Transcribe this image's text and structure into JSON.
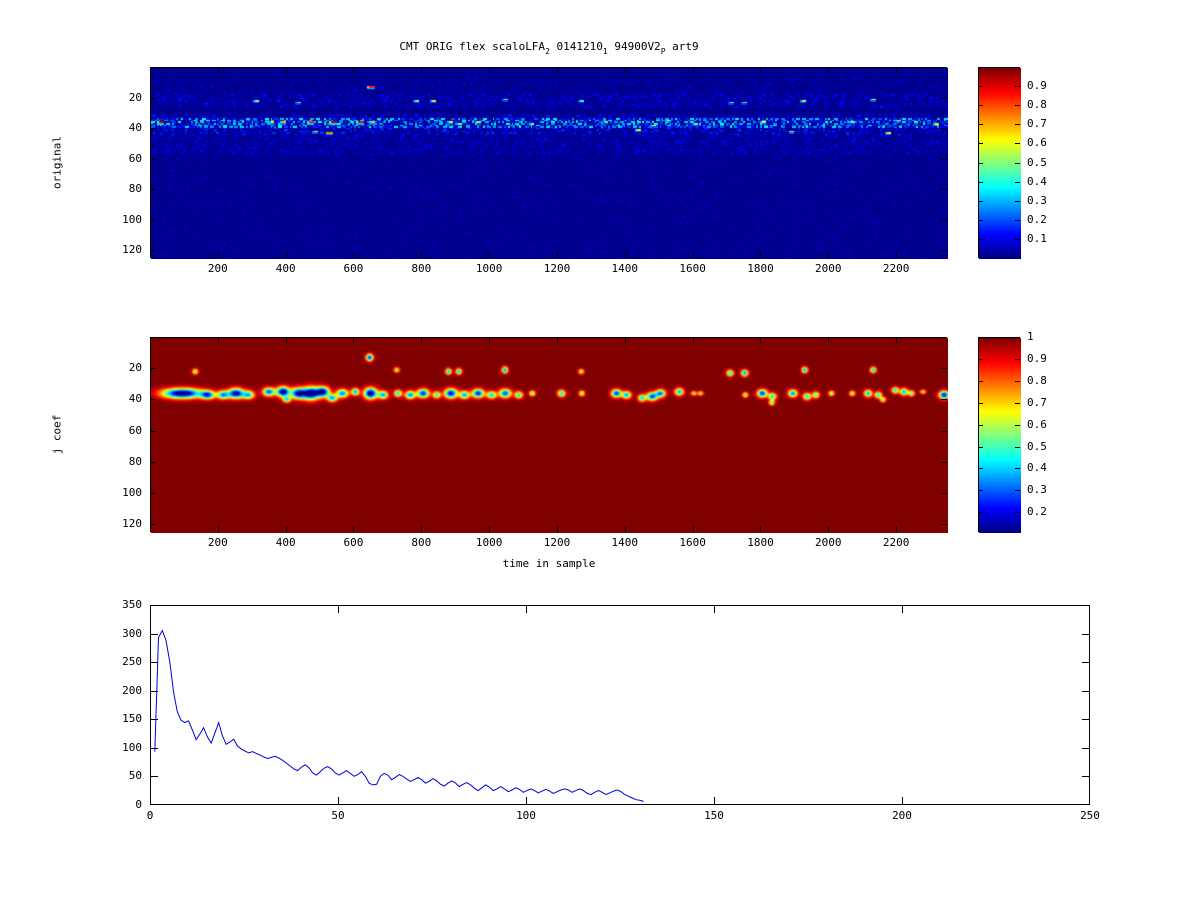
{
  "figure": {
    "background": "#ffffff",
    "axis_color": "#000000",
    "line_color": "#0000dd",
    "jet_low": "#00008f",
    "jet_high": "#7f0000"
  },
  "title": {
    "segments": [
      {
        "text": "CMT ORIG flex scaloLFA",
        "sub": false
      },
      {
        "text": "2",
        "sub": true
      },
      {
        "text": " 0141210",
        "sub": false
      },
      {
        "text": "1",
        "sub": true
      },
      {
        "text": " 94900V2",
        "sub": false
      },
      {
        "text": "P",
        "sub": true
      },
      {
        "text": " art9",
        "sub": false
      }
    ]
  },
  "chart_data": [
    {
      "type": "heatmap",
      "name": "original-scalogram",
      "ylabel": "original",
      "xlabel": "",
      "x_ticks": [
        200,
        400,
        600,
        800,
        1000,
        1200,
        1400,
        1600,
        1800,
        2000,
        2200
      ],
      "y_ticks": [
        20,
        40,
        60,
        80,
        100,
        120
      ],
      "x_range": [
        0,
        2350
      ],
      "y_range": [
        0,
        125
      ],
      "grid": false,
      "colormap": "jet",
      "background_value": 0.016,
      "colorbar": {
        "ticks": [
          0.1,
          0.2,
          0.3,
          0.4,
          0.5,
          0.6,
          0.7,
          0.8,
          0.9
        ],
        "vmin": 0,
        "vmax": 1
      },
      "noise": {
        "seed": 7,
        "bands": [
          {
            "row_min": 33,
            "row_max": 38,
            "density": 0.75,
            "vmin": 0.08,
            "vmax": 0.4
          },
          {
            "row_min": 30,
            "row_max": 33,
            "density": 0.25,
            "vmin": 0.05,
            "vmax": 0.15
          },
          {
            "row_min": 38,
            "row_max": 43,
            "density": 0.3,
            "vmin": 0.05,
            "vmax": 0.18
          },
          {
            "row_min": 17,
            "row_max": 25,
            "density": 0.28,
            "vmin": 0.04,
            "vmax": 0.14
          },
          {
            "row_min": 44,
            "row_max": 56,
            "density": 0.22,
            "vmin": 0.04,
            "vmax": 0.12
          },
          {
            "row_min": 6,
            "row_max": 16,
            "density": 0.1,
            "vmin": 0.03,
            "vmax": 0.09
          },
          {
            "row_min": 57,
            "row_max": 124,
            "density": 0.04,
            "vmin": 0.03,
            "vmax": 0.07
          }
        ]
      },
      "hotspots": [
        [
          25,
          35,
          0.95
        ],
        [
          305,
          21,
          0.55
        ],
        [
          350,
          35,
          0.65
        ],
        [
          387,
          35,
          0.7
        ],
        [
          430,
          22,
          0.5
        ],
        [
          467,
          35,
          0.85
        ],
        [
          480,
          41,
          0.6
        ],
        [
          520,
          42,
          0.75
        ],
        [
          530,
          35,
          0.95
        ],
        [
          612,
          35,
          0.9
        ],
        [
          642,
          12,
          0.85
        ],
        [
          650,
          35,
          0.7
        ],
        [
          776,
          21,
          0.5
        ],
        [
          826,
          21,
          0.55
        ],
        [
          880,
          35,
          0.6
        ],
        [
          905,
          36,
          0.5
        ],
        [
          960,
          35,
          0.55
        ],
        [
          1041,
          20,
          0.5
        ],
        [
          1120,
          36,
          0.55
        ],
        [
          1266,
          21,
          0.45
        ],
        [
          1340,
          35,
          0.5
        ],
        [
          1430,
          40,
          0.65
        ],
        [
          1475,
          37,
          0.6
        ],
        [
          1520,
          34,
          0.55
        ],
        [
          1600,
          36,
          0.5
        ],
        [
          1705,
          22,
          0.5
        ],
        [
          1745,
          22,
          0.5
        ],
        [
          1800,
          35,
          0.6
        ],
        [
          1886,
          41,
          0.65
        ],
        [
          1920,
          21,
          0.55
        ],
        [
          2063,
          35,
          0.5
        ],
        [
          2127,
          20,
          0.6
        ],
        [
          2171,
          42,
          0.6
        ],
        [
          2200,
          34,
          0.55
        ],
        [
          2310,
          36,
          0.65
        ]
      ]
    },
    {
      "type": "heatmap",
      "name": "thresholded-scalogram",
      "ylabel": "j coef",
      "xlabel": "time in sample",
      "x_ticks": [
        200,
        400,
        600,
        800,
        1000,
        1200,
        1400,
        1600,
        1800,
        2000,
        2200
      ],
      "y_ticks": [
        20,
        40,
        60,
        80,
        100,
        120
      ],
      "x_range": [
        0,
        2350
      ],
      "y_range": [
        0,
        125
      ],
      "grid": false,
      "colormap": "jet",
      "background_value": 1.0,
      "colorbar": {
        "ticks": [
          0.2,
          0.3,
          0.4,
          0.5,
          0.6,
          0.7,
          0.8,
          0.9,
          1
        ],
        "vmin": 0.11,
        "vmax": 1
      },
      "blobs": [
        [
          90,
          35,
          40,
          2.2,
          0.97
        ],
        [
          128,
          21,
          6,
          1.2,
          0.5
        ],
        [
          165,
          36,
          14,
          1.8,
          0.7
        ],
        [
          210,
          36,
          12,
          1.8,
          0.65
        ],
        [
          248,
          35,
          16,
          2.2,
          0.9
        ],
        [
          285,
          36,
          12,
          1.8,
          0.6
        ],
        [
          345,
          34,
          12,
          1.8,
          0.75
        ],
        [
          387,
          34,
          13,
          2.2,
          0.95
        ],
        [
          398,
          39,
          8,
          1.3,
          0.55
        ],
        [
          432,
          35,
          15,
          2.4,
          0.85
        ],
        [
          470,
          35,
          17,
          2.8,
          0.95
        ],
        [
          505,
          34,
          13,
          2.2,
          0.85
        ],
        [
          532,
          38,
          10,
          1.6,
          0.65
        ],
        [
          562,
          35,
          12,
          1.8,
          0.7
        ],
        [
          600,
          34,
          8,
          1.5,
          0.65
        ],
        [
          642,
          12,
          7,
          1.5,
          0.8
        ],
        [
          645,
          35,
          13,
          2.4,
          0.95
        ],
        [
          682,
          36,
          10,
          1.7,
          0.65
        ],
        [
          722,
          20,
          5,
          1.1,
          0.45
        ],
        [
          726,
          35,
          8,
          1.5,
          0.6
        ],
        [
          762,
          36,
          10,
          1.7,
          0.7
        ],
        [
          800,
          35,
          12,
          1.9,
          0.8
        ],
        [
          840,
          36,
          8,
          1.5,
          0.55
        ],
        [
          875,
          21,
          6,
          1.3,
          0.65
        ],
        [
          905,
          21,
          6,
          1.3,
          0.65
        ],
        [
          882,
          35,
          13,
          2.1,
          0.85
        ],
        [
          922,
          36,
          10,
          1.7,
          0.65
        ],
        [
          962,
          35,
          12,
          1.9,
          0.8
        ],
        [
          1002,
          36,
          10,
          1.6,
          0.6
        ],
        [
          1041,
          20,
          6,
          1.4,
          0.7
        ],
        [
          1042,
          35,
          12,
          1.9,
          0.75
        ],
        [
          1082,
          36,
          8,
          1.5,
          0.6
        ],
        [
          1122,
          35,
          6,
          1.2,
          0.55
        ],
        [
          1208,
          35,
          8,
          1.5,
          0.6
        ],
        [
          1266,
          21,
          5,
          1.1,
          0.45
        ],
        [
          1268,
          35,
          6,
          1.2,
          0.5
        ],
        [
          1370,
          35,
          10,
          1.7,
          0.8
        ],
        [
          1400,
          36,
          9,
          1.6,
          0.65
        ],
        [
          1445,
          38,
          8,
          1.5,
          0.6
        ],
        [
          1475,
          37,
          11,
          1.8,
          0.75
        ],
        [
          1500,
          35,
          10,
          1.7,
          0.7
        ],
        [
          1555,
          34,
          9,
          1.6,
          0.65
        ],
        [
          1598,
          35,
          4,
          0.9,
          0.45
        ],
        [
          1618,
          35,
          4,
          0.9,
          0.45
        ],
        [
          1705,
          22,
          7,
          1.4,
          0.6
        ],
        [
          1748,
          22,
          7,
          1.4,
          0.7
        ],
        [
          1750,
          36,
          5,
          1.1,
          0.5
        ],
        [
          1800,
          35,
          10,
          1.7,
          0.8
        ],
        [
          1830,
          37,
          8,
          1.5,
          0.6
        ],
        [
          1828,
          41,
          5,
          1.1,
          0.5
        ],
        [
          1890,
          35,
          9,
          1.6,
          0.7
        ],
        [
          1925,
          20,
          6,
          1.3,
          0.7
        ],
        [
          1932,
          37,
          8,
          1.5,
          0.6
        ],
        [
          1958,
          36,
          7,
          1.4,
          0.55
        ],
        [
          2004,
          35,
          5,
          1.1,
          0.5
        ],
        [
          2065,
          35,
          5,
          1.1,
          0.5
        ],
        [
          2112,
          35,
          8,
          1.5,
          0.65
        ],
        [
          2127,
          20,
          6,
          1.3,
          0.65
        ],
        [
          2142,
          36,
          7,
          1.4,
          0.6
        ],
        [
          2156,
          39,
          5,
          1.1,
          0.5
        ],
        [
          2192,
          33,
          7,
          1.4,
          0.6
        ],
        [
          2218,
          34,
          8,
          1.5,
          0.65
        ],
        [
          2240,
          35,
          6,
          1.2,
          0.55
        ],
        [
          2274,
          34,
          4,
          0.9,
          0.45
        ],
        [
          2336,
          36,
          10,
          1.7,
          0.85
        ]
      ]
    },
    {
      "type": "line",
      "name": "coefficient-decay",
      "ylabel": "",
      "xlabel": "",
      "x_ticks": [
        0,
        50,
        100,
        150,
        200,
        250
      ],
      "y_ticks": [
        0,
        50,
        100,
        150,
        200,
        250,
        300,
        350
      ],
      "xlim": [
        0,
        250
      ],
      "ylim": [
        0,
        350
      ],
      "grid": false,
      "line_color": "#0000dd",
      "series": {
        "x_start": 1,
        "x_step": 1,
        "y": [
          95,
          295,
          307,
          290,
          252,
          199,
          165,
          150,
          146,
          149,
          133,
          116,
          126,
          137,
          121,
          110,
          128,
          146,
          123,
          108,
          112,
          117,
          105,
          100,
          96,
          93,
          95,
          92,
          89,
          86,
          83,
          85,
          87,
          84,
          80,
          75,
          70,
          65,
          62,
          68,
          72,
          67,
          58,
          54,
          60,
          66,
          69,
          65,
          58,
          54,
          58,
          62,
          57,
          52,
          55,
          60,
          52,
          40,
          37,
          38,
          52,
          57,
          54,
          46,
          50,
          55,
          52,
          47,
          43,
          46,
          50,
          46,
          40,
          43,
          48,
          44,
          38,
          35,
          40,
          44,
          40,
          34,
          38,
          41,
          37,
          31,
          27,
          32,
          37,
          33,
          27,
          30,
          34,
          30,
          25,
          28,
          32,
          29,
          24,
          27,
          30,
          27,
          23,
          26,
          29,
          26,
          22,
          25,
          28,
          30,
          28,
          24,
          27,
          30,
          27,
          22,
          20,
          24,
          27,
          24,
          20,
          23,
          26,
          28,
          25,
          20,
          17,
          14,
          11,
          10,
          8
        ]
      }
    }
  ]
}
